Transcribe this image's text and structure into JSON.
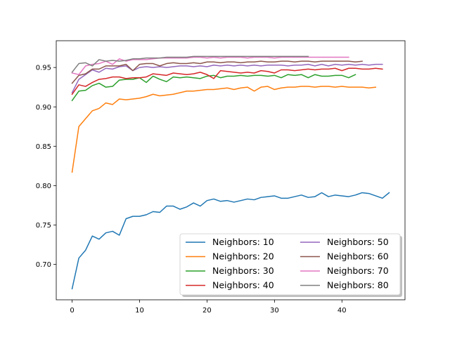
{
  "chart_data": {
    "type": "line",
    "title": "",
    "xlabel": "",
    "ylabel": "",
    "xlim": [
      -2.35,
      49.35
    ],
    "ylim": [
      0.655,
      0.984
    ],
    "xticks": [
      0,
      10,
      20,
      30,
      40
    ],
    "yticks": [
      0.7,
      0.75,
      0.8,
      0.85,
      0.9,
      0.95
    ],
    "xtick_labels": [
      "0",
      "10",
      "20",
      "30",
      "40"
    ],
    "ytick_labels": [
      "0.70",
      "0.75",
      "0.80",
      "0.85",
      "0.90",
      "0.95"
    ],
    "grid": false,
    "legend": {
      "placement": "lower-right",
      "columns": 2
    },
    "series": [
      {
        "name": "Neighbors: 10",
        "color": "#1f77b4",
        "values": [
          0.669,
          0.708,
          0.718,
          0.736,
          0.732,
          0.74,
          0.742,
          0.737,
          0.758,
          0.761,
          0.761,
          0.763,
          0.767,
          0.766,
          0.774,
          0.774,
          0.77,
          0.773,
          0.778,
          0.774,
          0.781,
          0.783,
          0.78,
          0.781,
          0.779,
          0.781,
          0.783,
          0.782,
          0.785,
          0.786,
          0.787,
          0.784,
          0.784,
          0.786,
          0.788,
          0.785,
          0.786,
          0.791,
          0.786,
          0.788,
          0.787,
          0.786,
          0.788,
          0.791,
          0.79,
          0.787,
          0.784,
          0.791
        ]
      },
      {
        "name": "Neighbors: 20",
        "color": "#ff7f0e",
        "values": [
          0.817,
          0.875,
          0.885,
          0.895,
          0.898,
          0.905,
          0.903,
          0.91,
          0.909,
          0.91,
          0.911,
          0.913,
          0.916,
          0.914,
          0.915,
          0.916,
          0.918,
          0.92,
          0.92,
          0.921,
          0.922,
          0.922,
          0.923,
          0.924,
          0.922,
          0.924,
          0.925,
          0.92,
          0.925,
          0.926,
          0.922,
          0.924,
          0.925,
          0.925,
          0.926,
          0.926,
          0.925,
          0.926,
          0.926,
          0.925,
          0.926,
          0.925,
          0.925,
          0.925,
          0.924,
          0.925
        ]
      },
      {
        "name": "Neighbors: 30",
        "color": "#2ca02c",
        "values": [
          0.908,
          0.92,
          0.921,
          0.927,
          0.93,
          0.925,
          0.926,
          0.934,
          0.935,
          0.935,
          0.937,
          0.931,
          0.939,
          0.935,
          0.932,
          0.938,
          0.937,
          0.938,
          0.937,
          0.936,
          0.939,
          0.94,
          0.937,
          0.939,
          0.939,
          0.94,
          0.939,
          0.94,
          0.94,
          0.939,
          0.94,
          0.937,
          0.941,
          0.94,
          0.941,
          0.937,
          0.941,
          0.939,
          0.939,
          0.94,
          0.94,
          0.937,
          0.941
        ]
      },
      {
        "name": "Neighbors: 40",
        "color": "#d62728",
        "values": [
          0.916,
          0.928,
          0.926,
          0.931,
          0.935,
          0.936,
          0.938,
          0.938,
          0.936,
          0.937,
          0.937,
          0.938,
          0.942,
          0.941,
          0.94,
          0.943,
          0.942,
          0.941,
          0.942,
          0.944,
          0.941,
          0.936,
          0.946,
          0.945,
          0.944,
          0.943,
          0.944,
          0.943,
          0.946,
          0.945,
          0.943,
          0.947,
          0.947,
          0.946,
          0.947,
          0.948,
          0.947,
          0.948,
          0.948,
          0.949,
          0.946,
          0.949,
          0.949,
          0.948,
          0.948,
          0.949,
          0.948
        ]
      },
      {
        "name": "Neighbors: 50",
        "color": "#9467bd",
        "values": [
          0.918,
          0.935,
          0.941,
          0.947,
          0.944,
          0.949,
          0.948,
          0.951,
          0.952,
          0.946,
          0.95,
          0.951,
          0.95,
          0.951,
          0.95,
          0.951,
          0.952,
          0.952,
          0.951,
          0.952,
          0.951,
          0.953,
          0.952,
          0.953,
          0.952,
          0.953,
          0.952,
          0.953,
          0.952,
          0.953,
          0.953,
          0.953,
          0.952,
          0.953,
          0.953,
          0.954,
          0.952,
          0.954,
          0.952,
          0.954,
          0.953,
          0.954,
          0.953,
          0.954,
          0.953,
          0.954,
          0.954
        ]
      },
      {
        "name": "Neighbors: 60",
        "color": "#8c564b",
        "values": [
          0.93,
          0.94,
          0.942,
          0.948,
          0.948,
          0.952,
          0.952,
          0.952,
          0.954,
          0.946,
          0.954,
          0.955,
          0.955,
          0.952,
          0.955,
          0.956,
          0.955,
          0.955,
          0.956,
          0.955,
          0.957,
          0.957,
          0.956,
          0.957,
          0.957,
          0.956,
          0.957,
          0.957,
          0.958,
          0.957,
          0.957,
          0.958,
          0.958,
          0.957,
          0.958,
          0.958,
          0.957,
          0.958,
          0.958,
          0.958,
          0.958,
          0.958,
          0.957,
          0.958
        ]
      },
      {
        "name": "Neighbors: 70",
        "color": "#e377c2",
        "values": [
          0.943,
          0.941,
          0.952,
          0.954,
          0.955,
          0.958,
          0.954,
          0.961,
          0.958,
          0.96,
          0.96,
          0.96,
          0.961,
          0.962,
          0.962,
          0.962,
          0.962,
          0.962,
          0.963,
          0.963,
          0.962,
          0.963,
          0.962,
          0.963,
          0.963,
          0.963,
          0.962,
          0.963,
          0.963,
          0.963,
          0.962,
          0.963,
          0.963,
          0.963,
          0.963,
          0.963,
          0.963,
          0.963,
          0.963,
          0.963,
          0.963,
          0.963
        ]
      },
      {
        "name": "Neighbors: 80",
        "color": "#7f7f7f",
        "values": [
          0.944,
          0.955,
          0.956,
          0.952,
          0.96,
          0.958,
          0.959,
          0.958,
          0.959,
          0.961,
          0.961,
          0.962,
          0.962,
          0.962,
          0.963,
          0.963,
          0.963,
          0.963,
          0.964,
          0.964,
          0.964,
          0.964,
          0.964,
          0.964,
          0.964,
          0.964,
          0.964,
          0.964,
          0.964,
          0.964,
          0.964,
          0.964,
          0.964,
          0.964,
          0.964,
          0.964
        ]
      }
    ]
  }
}
